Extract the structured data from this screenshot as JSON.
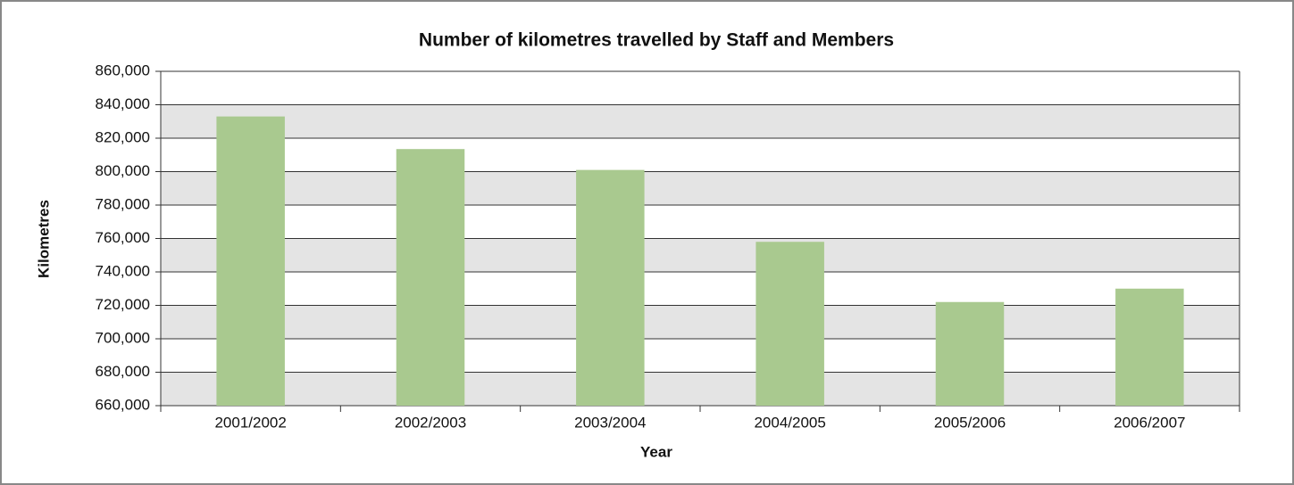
{
  "chart_data": {
    "type": "bar",
    "title": "Number of kilometres travelled by Staff and Members",
    "x_label": "Year",
    "y_label": "Kilometres",
    "categories": [
      "2001/2002",
      "2002/2003",
      "2003/2004",
      "2004/2005",
      "2005/2006",
      "2006/2007"
    ],
    "values": [
      833000,
      813500,
      801000,
      758000,
      722000,
      730000
    ],
    "color": "#a9c98f",
    "ylim": [
      660000,
      860000
    ],
    "yticks": [
      {
        "value": 660000,
        "label": "660,000"
      },
      {
        "value": 680000,
        "label": "680,000"
      },
      {
        "value": 700000,
        "label": "700,000"
      },
      {
        "value": 720000,
        "label": "720,000"
      },
      {
        "value": 740000,
        "label": "740,000"
      },
      {
        "value": 760000,
        "label": "760,000"
      },
      {
        "value": 780000,
        "label": "780,000"
      },
      {
        "value": 800000,
        "label": "800,000"
      },
      {
        "value": 820000,
        "label": "820,000"
      },
      {
        "value": 840000,
        "label": "840,000"
      },
      {
        "value": 860000,
        "label": "860,000"
      }
    ],
    "grid": true
  }
}
